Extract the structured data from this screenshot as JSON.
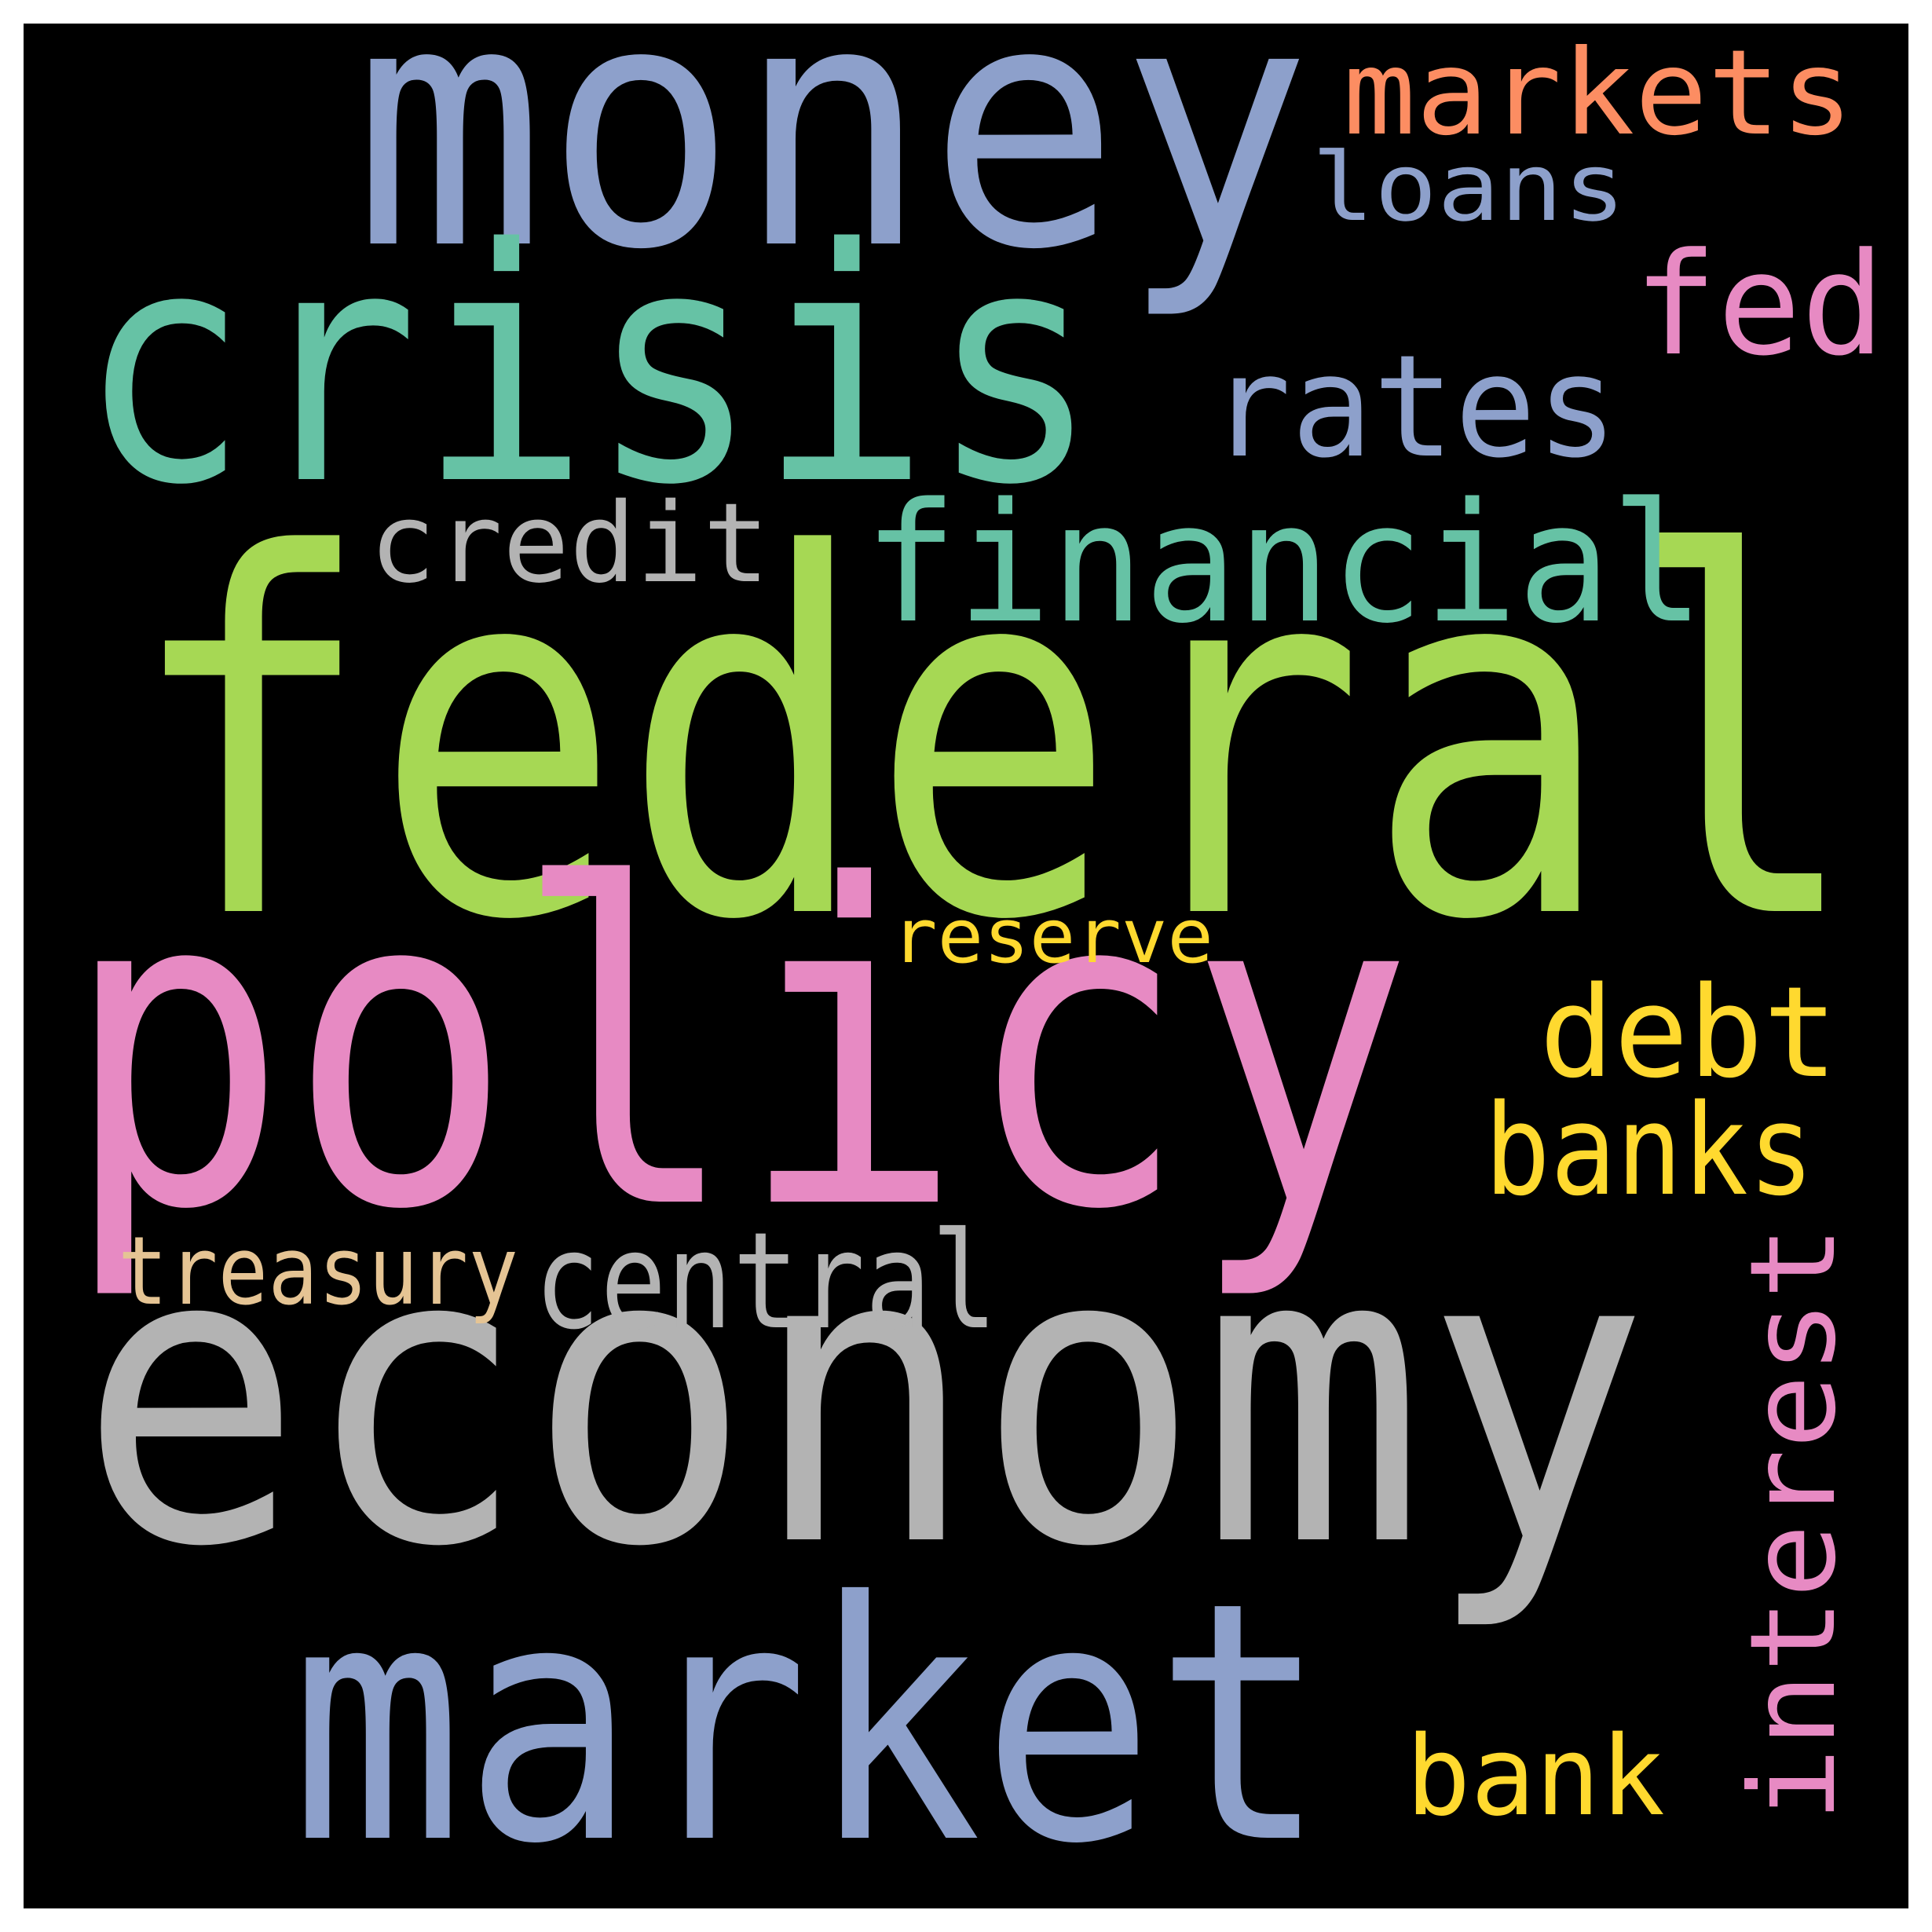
{
  "canvas": {
    "background": "#000000",
    "page_background": "#ffffff"
  },
  "words": [
    {
      "text": "federal",
      "color": "#a6d854"
    },
    {
      "text": "policy",
      "color": "#e78ac3"
    },
    {
      "text": "economy",
      "color": "#b3b3b3"
    },
    {
      "text": "money",
      "color": "#8da0cb"
    },
    {
      "text": "crisis",
      "color": "#66c2a5"
    },
    {
      "text": "market",
      "color": "#8da0cb"
    },
    {
      "text": "financial",
      "color": "#66c2a5"
    },
    {
      "text": "rates",
      "color": "#8da0cb"
    },
    {
      "text": "markets",
      "color": "#fc8d62"
    },
    {
      "text": "fed",
      "color": "#e78ac3"
    },
    {
      "text": "interest",
      "color": "#e78ac3"
    },
    {
      "text": "central",
      "color": "#b3b3b3"
    },
    {
      "text": "banks",
      "color": "#ffd92f"
    },
    {
      "text": "debt",
      "color": "#ffd92f"
    },
    {
      "text": "credit",
      "color": "#b3b3b3"
    },
    {
      "text": "loans",
      "color": "#8da0cb"
    },
    {
      "text": "bank",
      "color": "#ffd92f"
    },
    {
      "text": "treasury",
      "color": "#e5c494"
    },
    {
      "text": "reserve",
      "color": "#ffd92f"
    }
  ]
}
